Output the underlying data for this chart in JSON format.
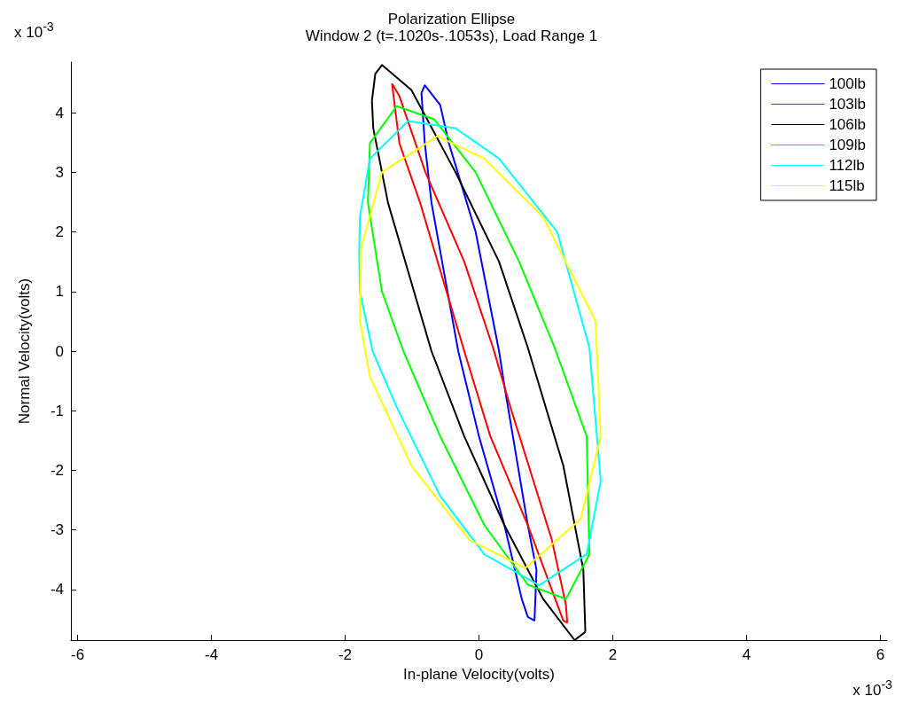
{
  "chart_data": {
    "type": "line",
    "title": "Polarization Ellipse",
    "subtitle": "Window 2 (t=.1020s-.1053s), Load Range 1",
    "xlabel": "In-plane Velocity(volts)",
    "ylabel": "Normal Velocity(volts)",
    "annotations": [
      "x 10$^{-3}$",
      "x 10$^{-3}$"
    ],
    "xlim": [
      -6.1,
      6.1
    ],
    "xticks": [
      -6,
      -4,
      -2,
      0,
      2,
      4,
      6
    ],
    "ylim": [
      -4.85,
      4.85
    ],
    "yticks": [
      -4,
      -3,
      -2,
      -1,
      0,
      1,
      2,
      3,
      4
    ],
    "grid": false,
    "legend": "top right",
    "marker": "none",
    "line_style": "solid",
    "series": [
      {
        "name": "100lb",
        "color": "#0000ff",
        "x": [
          -0.86,
          -0.81,
          -0.58,
          -0.45,
          -0.05,
          0.3,
          0.38,
          0.73,
          0.86,
          null,
          -0.86,
          -0.81,
          -0.71,
          -0.31,
          0,
          0.38,
          0.64,
          0.73,
          0.83,
          0.86
        ],
        "values": [
          4.33,
          4.46,
          4.13,
          3.49,
          2.0,
          0,
          -0.58,
          -2.92,
          -3.67,
          null,
          4.33,
          3.49,
          2.49,
          0,
          -1.43,
          -2.92,
          -4.16,
          -4.46,
          -4.52,
          -3.67
        ]
      },
      {
        "name": "103lb",
        "color": "#ff0000",
        "x": [
          -1.3,
          -1.19,
          -0.8,
          -0.22,
          0.21,
          0.47,
          1.09,
          1.3,
          1.32,
          null,
          -1.3,
          -1.19,
          -0.88,
          -0.22,
          0.17,
          0.73,
          1.26,
          1.32
        ],
        "values": [
          4.49,
          4.28,
          3.0,
          1.5,
          0.06,
          -0.94,
          -3.17,
          -4.26,
          -4.56,
          null,
          4.49,
          3.49,
          2.49,
          0,
          -1.43,
          -2.92,
          -4.52,
          -4.56
        ]
      },
      {
        "name": "106lb",
        "color": "#000000",
        "x": [
          -1.6,
          -1.55,
          -1.45,
          -1.01,
          -0.35,
          0.3,
          0.73,
          1.26,
          1.56,
          1.59,
          null,
          -1.6,
          -1.58,
          -1.36,
          -0.71,
          -0.22,
          0.38,
          0.96,
          1.43,
          1.59
        ],
        "values": [
          4.2,
          4.65,
          4.8,
          4.38,
          3.0,
          1.5,
          0.06,
          -1.92,
          -3.67,
          -4.71,
          null,
          4.2,
          3.74,
          2.49,
          0,
          -1.43,
          -2.92,
          -4.16,
          -4.85,
          -4.71
        ]
      },
      {
        "name": "109lb",
        "color": "#00ff00",
        "x": [
          -1.66,
          -1.63,
          -1.23,
          -0.67,
          -0.05,
          0.6,
          1.13,
          1.61,
          1.65,
          null,
          -1.66,
          -1.45,
          -1.13,
          -0.58,
          0.08,
          0.73,
          1.3,
          1.65
        ],
        "values": [
          2.49,
          3.49,
          4.11,
          3.89,
          3.0,
          1.5,
          0.06,
          -1.43,
          -3.41,
          null,
          2.49,
          1.0,
          0,
          -1.43,
          -2.92,
          -3.92,
          -4.16,
          -3.41
        ]
      },
      {
        "name": "112lb",
        "color": "#00ffff",
        "x": [
          -1.79,
          -1.78,
          -1.63,
          -1.06,
          -0.35,
          0.3,
          1.17,
          1.65,
          1.82,
          null,
          -1.79,
          -1.78,
          -1.59,
          -1.23,
          -0.58,
          0.08,
          0.9,
          1.61,
          1.82
        ],
        "values": [
          1.6,
          2.25,
          3.23,
          3.86,
          3.74,
          3.23,
          2.0,
          0.06,
          -2.18,
          null,
          1.6,
          1.0,
          0,
          -0.94,
          -2.43,
          -3.41,
          -3.93,
          -3.41,
          -2.18
        ]
      },
      {
        "name": "115lb",
        "color": "#ffff00",
        "x": [
          -1.78,
          -1.76,
          -1.45,
          -0.62,
          0.08,
          0.96,
          1.74,
          1.82,
          null,
          -1.78,
          -1.63,
          -1.01,
          -0.14,
          0.69,
          1.52,
          1.82
        ],
        "values": [
          0.51,
          1.74,
          3.0,
          3.61,
          3.23,
          2.25,
          0.51,
          -1.43,
          null,
          0.51,
          -0.43,
          -1.92,
          -3.17,
          -3.64,
          -2.82,
          -1.43
        ]
      }
    ]
  }
}
